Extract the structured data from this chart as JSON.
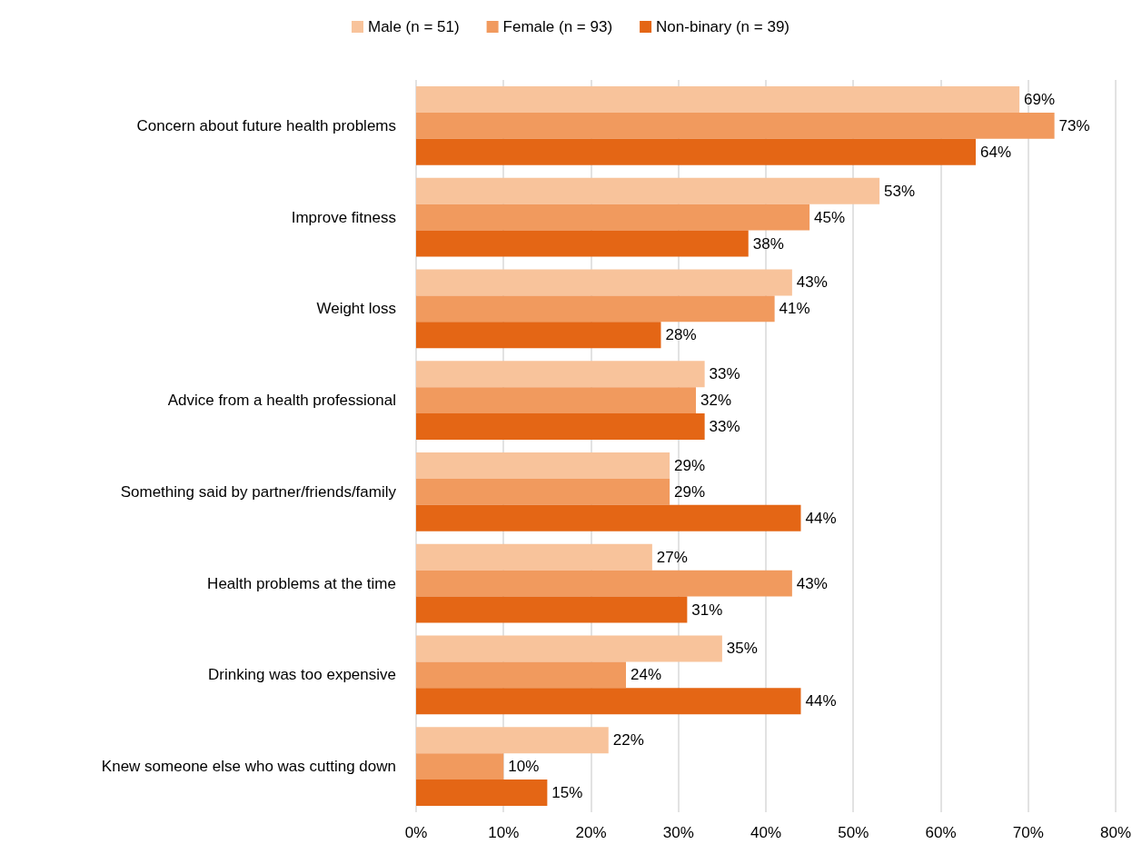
{
  "chart_data": {
    "type": "bar",
    "orientation": "horizontal",
    "categories": [
      "Concern about future health problems",
      "Improve fitness",
      "Weight loss",
      "Advice from a health professional",
      "Something said by partner/friends/family",
      "Health problems at the time",
      "Drinking was too expensive",
      "Knew someone else who was cutting down"
    ],
    "series": [
      {
        "name": "Male (n = 51)",
        "color": "#f8c39b",
        "values": [
          69,
          53,
          43,
          33,
          29,
          27,
          35,
          22
        ],
        "value_labels": [
          "69%",
          "53%",
          "43%",
          "33%",
          "29%",
          "27%",
          "35%",
          "22%"
        ]
      },
      {
        "name": "Female (n = 93)",
        "color": "#f19a5e",
        "values": [
          73,
          45,
          41,
          32,
          29,
          43,
          24,
          10
        ],
        "value_labels": [
          "73%",
          "45%",
          "41%",
          "32%",
          "29%",
          "43%",
          "24%",
          "10%"
        ]
      },
      {
        "name": "Non-binary (n = 39)",
        "color": "#e46615",
        "values": [
          64,
          38,
          28,
          33,
          44,
          31,
          44,
          15
        ],
        "value_labels": [
          "64%",
          "38%",
          "28%",
          "33%",
          "44%",
          "31%",
          "44%",
          "15%"
        ]
      }
    ],
    "xlim": [
      0,
      80
    ],
    "xticks": [
      {
        "value": 0,
        "label": "0%"
      },
      {
        "value": 10,
        "label": "10%"
      },
      {
        "value": 20,
        "label": "20%"
      },
      {
        "value": 30,
        "label": "30%"
      },
      {
        "value": 40,
        "label": "40%"
      },
      {
        "value": 50,
        "label": "50%"
      },
      {
        "value": 60,
        "label": "60%"
      },
      {
        "value": 70,
        "label": "70%"
      },
      {
        "value": 80,
        "label": "80%"
      }
    ],
    "grid": "x",
    "legend": "top"
  }
}
